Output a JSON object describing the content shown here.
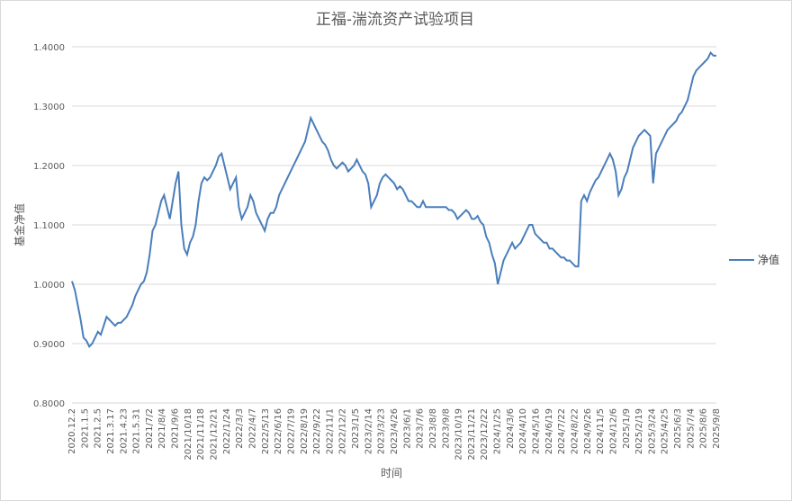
{
  "chart_data": {
    "type": "line",
    "title": "正福-湍流资产试验项目",
    "xlabel": "时间",
    "ylabel": "基金净值",
    "ylim": [
      0.8,
      1.4
    ],
    "yticks": [
      "0.8000",
      "0.9000",
      "1.0000",
      "1.1000",
      "1.2000",
      "1.3000",
      "1.4000"
    ],
    "grid": true,
    "legend_position": "right",
    "colors": {
      "series": "#4a7ebb",
      "grid": "#d9d9d9",
      "text": "#595959"
    },
    "x_tick_labels": [
      "2020.12.2",
      "2021.1.5",
      "2021.2.5",
      "2021.3.17",
      "2021.4.23",
      "2021.5.31",
      "2021/7/2",
      "2021/8/4",
      "2021/9/6",
      "2021/10/18",
      "2021/11/18",
      "2021/12/21",
      "2022/1/24",
      "2022/3/3",
      "2022/4/7",
      "2022/5/13",
      "2022/6/16",
      "2022/7/19",
      "2022/8/19",
      "2022/9/22",
      "2022/11/1",
      "2022/12/2",
      "2023/1/5",
      "2023/2/14",
      "2023/3/23",
      "2023/4/26",
      "2023/6/1",
      "2023/7/6",
      "2023/8/8",
      "2023/9/8",
      "2023/10/19",
      "2023/11/21",
      "2023/12/22",
      "2024/1/25",
      "2024/3/6",
      "2024/4/10",
      "2024/5/16",
      "2024/6/19",
      "2024/7/22",
      "2024/8/22",
      "2024/9/26",
      "2024/11/5",
      "2024/12/6",
      "2025/1/9",
      "2025/2/19",
      "2025/3/24",
      "2025/4/25",
      "2025/6/3",
      "2025/7/4",
      "2025/8/6",
      "2025/9/8"
    ],
    "series": [
      {
        "name": "净值",
        "values": [
          1.005,
          0.99,
          0.965,
          0.94,
          0.91,
          0.905,
          0.895,
          0.9,
          0.91,
          0.92,
          0.915,
          0.93,
          0.945,
          0.94,
          0.935,
          0.93,
          0.935,
          0.935,
          0.94,
          0.945,
          0.955,
          0.965,
          0.98,
          0.99,
          1.0,
          1.005,
          1.02,
          1.05,
          1.09,
          1.1,
          1.12,
          1.14,
          1.15,
          1.13,
          1.11,
          1.14,
          1.17,
          1.19,
          1.1,
          1.06,
          1.05,
          1.07,
          1.08,
          1.1,
          1.14,
          1.17,
          1.18,
          1.175,
          1.18,
          1.19,
          1.2,
          1.215,
          1.22,
          1.2,
          1.18,
          1.16,
          1.17,
          1.18,
          1.13,
          1.11,
          1.12,
          1.13,
          1.15,
          1.14,
          1.12,
          1.11,
          1.1,
          1.09,
          1.11,
          1.12,
          1.12,
          1.13,
          1.15,
          1.16,
          1.17,
          1.18,
          1.19,
          1.2,
          1.21,
          1.22,
          1.23,
          1.24,
          1.26,
          1.28,
          1.27,
          1.26,
          1.25,
          1.24,
          1.235,
          1.225,
          1.21,
          1.2,
          1.195,
          1.2,
          1.205,
          1.2,
          1.19,
          1.195,
          1.2,
          1.21,
          1.2,
          1.19,
          1.185,
          1.17,
          1.13,
          1.14,
          1.15,
          1.17,
          1.18,
          1.185,
          1.18,
          1.175,
          1.17,
          1.16,
          1.165,
          1.16,
          1.15,
          1.14,
          1.14,
          1.135,
          1.13,
          1.13,
          1.14,
          1.13,
          1.13,
          1.13,
          1.13,
          1.13,
          1.13,
          1.13,
          1.13,
          1.125,
          1.125,
          1.12,
          1.11,
          1.115,
          1.12,
          1.125,
          1.12,
          1.11,
          1.11,
          1.115,
          1.105,
          1.1,
          1.08,
          1.07,
          1.05,
          1.035,
          1.0,
          1.02,
          1.04,
          1.05,
          1.06,
          1.07,
          1.06,
          1.065,
          1.07,
          1.08,
          1.09,
          1.1,
          1.1,
          1.085,
          1.08,
          1.075,
          1.07,
          1.07,
          1.06,
          1.06,
          1.055,
          1.05,
          1.045,
          1.045,
          1.04,
          1.04,
          1.035,
          1.03,
          1.03,
          1.14,
          1.15,
          1.14,
          1.155,
          1.165,
          1.175,
          1.18,
          1.19,
          1.2,
          1.21,
          1.22,
          1.21,
          1.19,
          1.15,
          1.16,
          1.18,
          1.19,
          1.21,
          1.23,
          1.24,
          1.25,
          1.255,
          1.26,
          1.255,
          1.25,
          1.17,
          1.22,
          1.23,
          1.24,
          1.25,
          1.26,
          1.265,
          1.27,
          1.275,
          1.285,
          1.29,
          1.3,
          1.31,
          1.33,
          1.35,
          1.36,
          1.365,
          1.37,
          1.375,
          1.38,
          1.39,
          1.385,
          1.385
        ]
      }
    ]
  }
}
